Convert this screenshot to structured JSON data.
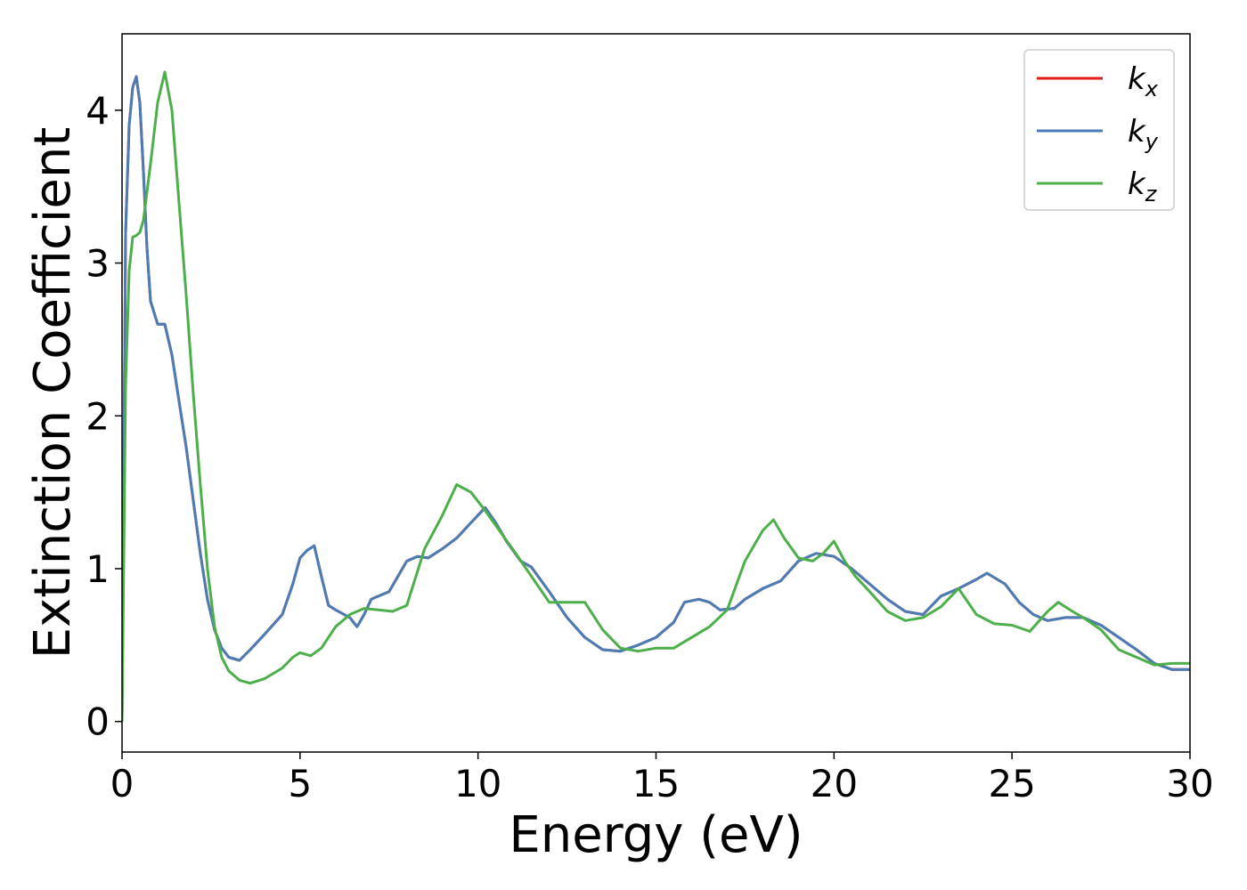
{
  "chart_data": {
    "type": "line",
    "xlabel": "Energy (eV)",
    "ylabel": "Extinction Coefficient",
    "xlim": [
      0,
      30
    ],
    "ylim": [
      -0.2,
      4.5
    ],
    "xticks": [
      0,
      5,
      10,
      15,
      20,
      25,
      30
    ],
    "yticks": [
      0,
      1,
      2,
      3,
      4
    ],
    "legend_position": "top-right",
    "grid": false,
    "series": [
      {
        "name": "k_x",
        "base": "k",
        "sub": "x",
        "color": "#e41a1c",
        "x": [
          0,
          0.1,
          0.2,
          0.3,
          0.4,
          0.5,
          0.6,
          0.7,
          0.8,
          1.0,
          1.2,
          1.4,
          1.6,
          1.8,
          2.0,
          2.2,
          2.4,
          2.6,
          2.8,
          3.0,
          3.3,
          3.6,
          4.0,
          4.5,
          4.8,
          5.0,
          5.2,
          5.4,
          5.6,
          5.8,
          6.0,
          6.4,
          6.6,
          6.8,
          7.0,
          7.5,
          8.0,
          8.3,
          8.6,
          9.0,
          9.4,
          9.8,
          10.2,
          10.5,
          10.8,
          11.2,
          11.5,
          12.0,
          12.5,
          13.0,
          13.5,
          14.0,
          14.5,
          15.0,
          15.5,
          15.8,
          16.2,
          16.5,
          16.8,
          17.2,
          17.5,
          18.0,
          18.5,
          19.0,
          19.5,
          20.0,
          20.5,
          21.0,
          21.5,
          22.0,
          22.5,
          23.0,
          23.5,
          24.0,
          24.3,
          24.8,
          25.2,
          25.6,
          26.0,
          26.5,
          27.0,
          27.5,
          28.0,
          28.5,
          29.0,
          29.5,
          30.0
        ],
        "y": [
          0,
          3.2,
          3.9,
          4.15,
          4.22,
          4.05,
          3.6,
          3.1,
          2.75,
          2.6,
          2.6,
          2.4,
          2.1,
          1.8,
          1.45,
          1.1,
          0.8,
          0.6,
          0.48,
          0.42,
          0.4,
          0.47,
          0.57,
          0.7,
          0.9,
          1.07,
          1.12,
          1.15,
          0.95,
          0.76,
          0.73,
          0.68,
          0.62,
          0.7,
          0.8,
          0.85,
          1.05,
          1.08,
          1.07,
          1.13,
          1.2,
          1.3,
          1.4,
          1.3,
          1.18,
          1.05,
          1.01,
          0.85,
          0.68,
          0.55,
          0.47,
          0.46,
          0.5,
          0.55,
          0.65,
          0.78,
          0.8,
          0.78,
          0.73,
          0.74,
          0.8,
          0.87,
          0.92,
          1.05,
          1.1,
          1.08,
          1.0,
          0.9,
          0.8,
          0.72,
          0.7,
          0.82,
          0.87,
          0.93,
          0.97,
          0.9,
          0.78,
          0.7,
          0.66,
          0.68,
          0.68,
          0.63,
          0.55,
          0.47,
          0.38,
          0.34,
          0.34
        ]
      },
      {
        "name": "k_y",
        "base": "k",
        "sub": "y",
        "color": "#4a7db5",
        "x": [
          0,
          0.1,
          0.2,
          0.3,
          0.4,
          0.5,
          0.6,
          0.7,
          0.8,
          1.0,
          1.2,
          1.4,
          1.6,
          1.8,
          2.0,
          2.2,
          2.4,
          2.6,
          2.8,
          3.0,
          3.3,
          3.6,
          4.0,
          4.5,
          4.8,
          5.0,
          5.2,
          5.4,
          5.6,
          5.8,
          6.0,
          6.4,
          6.6,
          6.8,
          7.0,
          7.5,
          8.0,
          8.3,
          8.6,
          9.0,
          9.4,
          9.8,
          10.2,
          10.5,
          10.8,
          11.2,
          11.5,
          12.0,
          12.5,
          13.0,
          13.5,
          14.0,
          14.5,
          15.0,
          15.5,
          15.8,
          16.2,
          16.5,
          16.8,
          17.2,
          17.5,
          18.0,
          18.5,
          19.0,
          19.5,
          20.0,
          20.5,
          21.0,
          21.5,
          22.0,
          22.5,
          23.0,
          23.5,
          24.0,
          24.3,
          24.8,
          25.2,
          25.6,
          26.0,
          26.5,
          27.0,
          27.5,
          28.0,
          28.5,
          29.0,
          29.5,
          30.0
        ],
        "y": [
          0,
          3.2,
          3.9,
          4.15,
          4.22,
          4.05,
          3.6,
          3.1,
          2.75,
          2.6,
          2.6,
          2.4,
          2.1,
          1.8,
          1.45,
          1.1,
          0.8,
          0.6,
          0.48,
          0.42,
          0.4,
          0.47,
          0.57,
          0.7,
          0.9,
          1.07,
          1.12,
          1.15,
          0.95,
          0.76,
          0.73,
          0.68,
          0.62,
          0.7,
          0.8,
          0.85,
          1.05,
          1.08,
          1.07,
          1.13,
          1.2,
          1.3,
          1.4,
          1.3,
          1.18,
          1.05,
          1.01,
          0.85,
          0.68,
          0.55,
          0.47,
          0.46,
          0.5,
          0.55,
          0.65,
          0.78,
          0.8,
          0.78,
          0.73,
          0.74,
          0.8,
          0.87,
          0.92,
          1.05,
          1.1,
          1.08,
          1.0,
          0.9,
          0.8,
          0.72,
          0.7,
          0.82,
          0.87,
          0.93,
          0.97,
          0.9,
          0.78,
          0.7,
          0.66,
          0.68,
          0.68,
          0.63,
          0.55,
          0.47,
          0.38,
          0.34,
          0.34
        ]
      },
      {
        "name": "k_z",
        "base": "k",
        "sub": "z",
        "color": "#4daf4a",
        "x": [
          0,
          0.1,
          0.2,
          0.3,
          0.4,
          0.5,
          0.6,
          0.8,
          1.0,
          1.2,
          1.4,
          1.6,
          1.8,
          2.0,
          2.2,
          2.4,
          2.6,
          2.8,
          3.0,
          3.3,
          3.6,
          4.0,
          4.5,
          4.8,
          5.0,
          5.3,
          5.6,
          6.0,
          6.4,
          6.8,
          7.2,
          7.6,
          8.0,
          8.5,
          9.0,
          9.4,
          9.8,
          10.2,
          10.6,
          11.0,
          11.5,
          12.0,
          12.5,
          13.0,
          13.5,
          14.0,
          14.5,
          15.0,
          15.5,
          16.0,
          16.5,
          17.0,
          17.5,
          18.0,
          18.3,
          18.6,
          19.0,
          19.4,
          19.7,
          20.0,
          20.3,
          20.6,
          21.0,
          21.5,
          22.0,
          22.5,
          23.0,
          23.5,
          24.0,
          24.5,
          25.0,
          25.5,
          26.0,
          26.3,
          26.7,
          27.0,
          27.5,
          28.0,
          28.5,
          29.0,
          29.5,
          30.0
        ],
        "y": [
          0,
          2.2,
          2.95,
          3.17,
          3.18,
          3.2,
          3.28,
          3.65,
          4.05,
          4.25,
          4.0,
          3.4,
          2.8,
          2.15,
          1.55,
          1.0,
          0.62,
          0.42,
          0.33,
          0.27,
          0.25,
          0.28,
          0.35,
          0.42,
          0.45,
          0.43,
          0.48,
          0.62,
          0.7,
          0.74,
          0.73,
          0.72,
          0.76,
          1.13,
          1.35,
          1.55,
          1.5,
          1.38,
          1.25,
          1.12,
          0.95,
          0.78,
          0.78,
          0.78,
          0.6,
          0.48,
          0.46,
          0.48,
          0.48,
          0.55,
          0.62,
          0.73,
          1.05,
          1.25,
          1.32,
          1.2,
          1.07,
          1.05,
          1.1,
          1.18,
          1.05,
          0.95,
          0.85,
          0.72,
          0.66,
          0.68,
          0.75,
          0.87,
          0.7,
          0.64,
          0.63,
          0.59,
          0.72,
          0.78,
          0.72,
          0.68,
          0.6,
          0.47,
          0.42,
          0.37,
          0.38,
          0.38
        ]
      }
    ]
  }
}
